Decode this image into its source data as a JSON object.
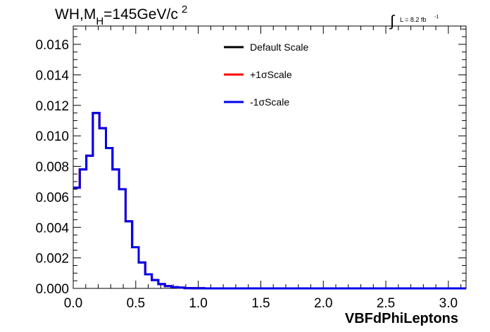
{
  "chart_data": {
    "type": "line",
    "title_parts": {
      "pre": "WH,M",
      "sub": "H",
      "mid": "=145GeV/c",
      "sup": "2"
    },
    "lumi": {
      "integral": "∫",
      "text": "L = 8.2 fb",
      "sup": "-1"
    },
    "xlabel": "VBFdPhiLeptons",
    "xlim": [
      0,
      3.14159
    ],
    "ylim": [
      0,
      0.0172
    ],
    "x_ticks": [
      0.0,
      0.5,
      1.0,
      1.5,
      2.0,
      2.5,
      3.0
    ],
    "x_tick_labels": [
      "0.0",
      "0.5",
      "1.0",
      "1.5",
      "2.0",
      "2.5",
      "3.0"
    ],
    "y_ticks": [
      0,
      0.002,
      0.004,
      0.006,
      0.008,
      0.01,
      0.012,
      0.014,
      0.016
    ],
    "y_tick_labels": [
      "0.000",
      "0.002",
      "0.004",
      "0.006",
      "0.008",
      "0.010",
      "0.012",
      "0.014",
      "0.016"
    ],
    "bin_edges": [
      0,
      0.0524,
      0.1047,
      0.1571,
      0.2094,
      0.2618,
      0.3142,
      0.3665,
      0.4189,
      0.4712,
      0.5236,
      0.576,
      0.6283,
      0.6807,
      0.733,
      0.7854,
      0.8378,
      0.8901,
      0.9425,
      0.9948,
      1.0472,
      3.14159
    ],
    "series": [
      {
        "name": "Default Scale",
        "color": "#000000",
        "values": [
          0.0066,
          0.0078,
          0.0087,
          0.0115,
          0.0105,
          0.0092,
          0.0078,
          0.0065,
          0.0044,
          0.0027,
          0.0017,
          0.00092,
          0.00055,
          0.00028,
          0.00015,
          8e-05,
          5e-05,
          2e-05,
          1e-05,
          1e-05,
          0.0
        ]
      },
      {
        "name": "+1σScale",
        "color": "#ff0000",
        "values": [
          0.0066,
          0.0078,
          0.0087,
          0.0115,
          0.0105,
          0.0092,
          0.0078,
          0.0065,
          0.0044,
          0.0027,
          0.0017,
          0.00092,
          0.00055,
          0.00028,
          0.00015,
          8e-05,
          5e-05,
          2e-05,
          1e-05,
          1e-05,
          0.0
        ]
      },
      {
        "name": "-1σScale",
        "color": "#0000ee",
        "values": [
          0.0066,
          0.0078,
          0.0087,
          0.0115,
          0.0105,
          0.0092,
          0.0078,
          0.0065,
          0.0044,
          0.0027,
          0.0017,
          0.00092,
          0.00055,
          0.00028,
          0.00015,
          8e-05,
          5e-05,
          2e-05,
          1e-05,
          1e-05,
          0.0
        ]
      }
    ],
    "legend": {
      "position": "top-center"
    },
    "grid": false
  }
}
